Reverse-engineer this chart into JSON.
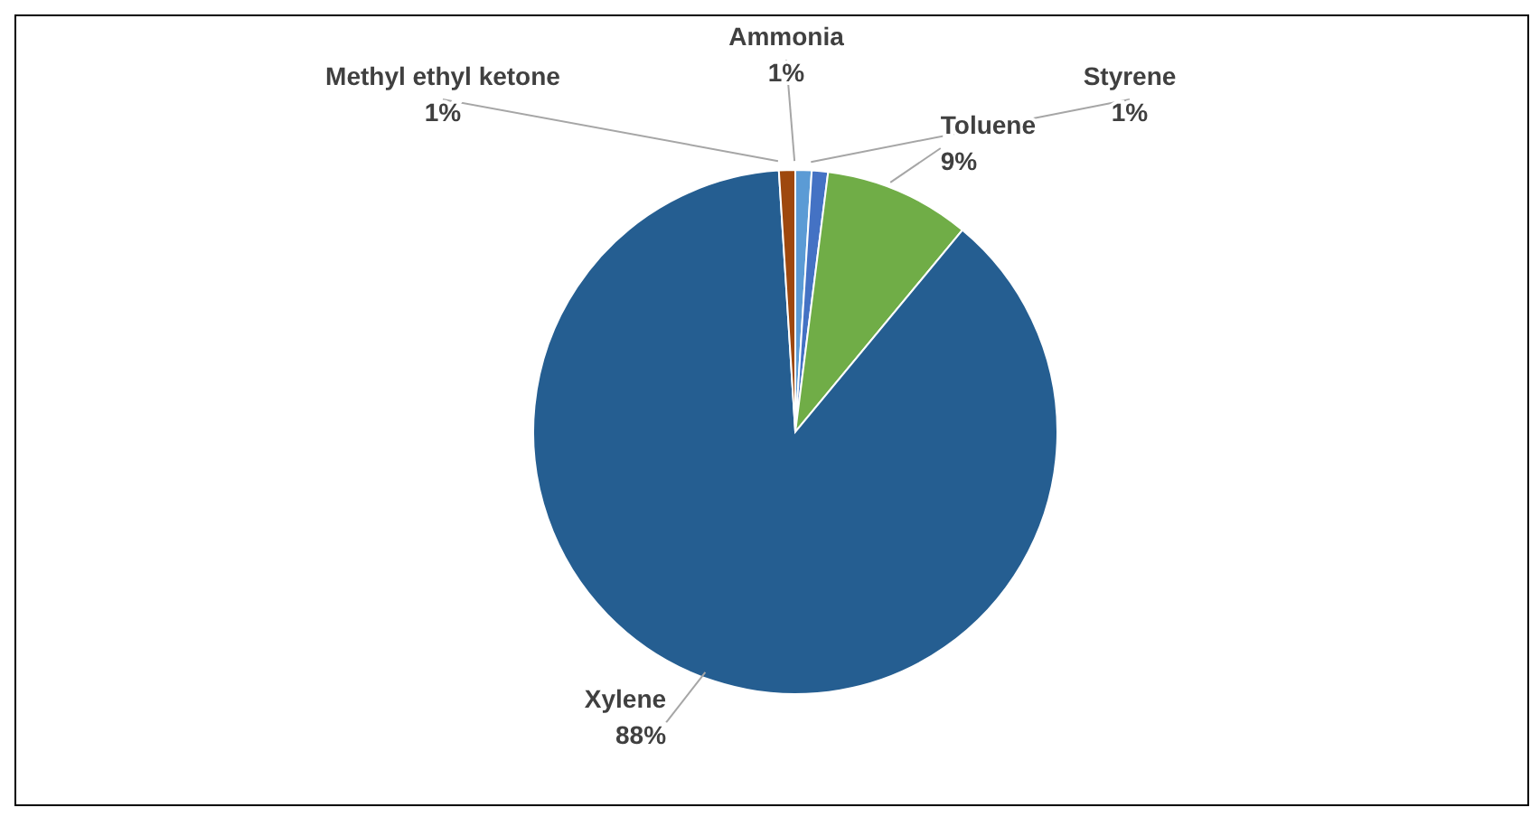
{
  "chart_data": {
    "type": "pie",
    "categories": [
      "Ammonia",
      "Styrene",
      "Toluene",
      "Xylene",
      "Methyl ethyl ketone"
    ],
    "values": [
      1,
      1,
      9,
      88,
      1
    ],
    "colors": [
      "#5b9bd5",
      "#4472c4",
      "#70ad47",
      "#255e91",
      "#9e480e"
    ],
    "value_labels": [
      "1%",
      "1%",
      "9%",
      "88%",
      "1%"
    ]
  }
}
